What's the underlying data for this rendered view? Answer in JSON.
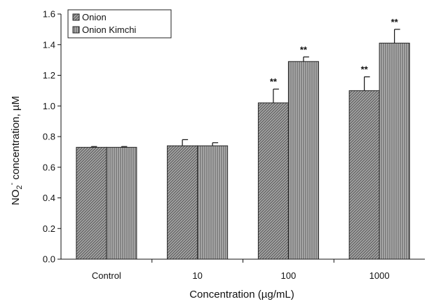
{
  "chart_data": {
    "type": "bar",
    "title": "",
    "xlabel": "Concentration (µg/mL)",
    "ylabel": {
      "pre": "NO",
      "sub": "2",
      "sup": "-",
      "post": " concentration, µM"
    },
    "categories": [
      "Control",
      "10",
      "100",
      "1000"
    ],
    "ylim": [
      0,
      1.6
    ],
    "yticks": [
      "0.0",
      "0.2",
      "0.4",
      "0.6",
      "0.8",
      "1.0",
      "1.2",
      "1.4",
      "1.6"
    ],
    "grid": false,
    "legend_position": "top-left",
    "series": [
      {
        "name": "Onion",
        "values": [
          0.73,
          0.74,
          1.02,
          1.1
        ],
        "errors": [
          0.005,
          0.04,
          0.09,
          0.09
        ],
        "significance": [
          "",
          "",
          "**",
          "**"
        ],
        "pattern": "diagonal-hatch",
        "color": "#8a8a8a"
      },
      {
        "name": "Onion Kimchi",
        "values": [
          0.73,
          0.74,
          1.29,
          1.41
        ],
        "errors": [
          0.005,
          0.02,
          0.03,
          0.09
        ],
        "significance": [
          "",
          "",
          "**",
          "**"
        ],
        "pattern": "vertical-hatch",
        "color": "#9a9a9a"
      }
    ]
  }
}
